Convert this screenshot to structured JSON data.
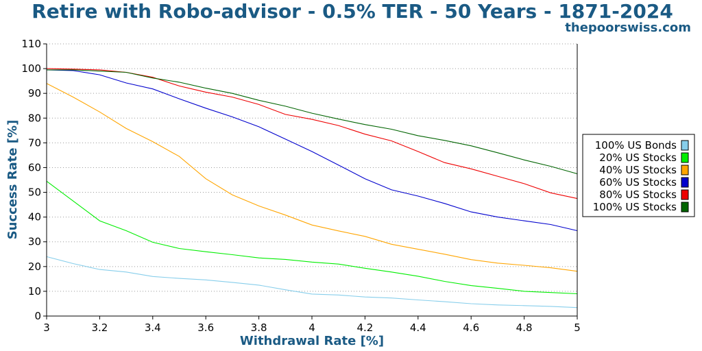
{
  "chart_data": {
    "type": "line",
    "title": "Retire with Robo-advisor - 0.5% TER - 50 Years - 1871-2024",
    "subtitle": "thepoorswiss.com",
    "xlabel": "Withdrawal Rate [%]",
    "ylabel": "Success Rate [%]",
    "xlim": [
      3,
      5
    ],
    "ylim": [
      0,
      110
    ],
    "x_ticks": [
      "3",
      "3.2",
      "3.4",
      "3.6",
      "3.8",
      "4",
      "4.2",
      "4.4",
      "4.6",
      "4.8",
      "5"
    ],
    "y_ticks": [
      "0",
      "10",
      "20",
      "30",
      "40",
      "50",
      "60",
      "70",
      "80",
      "90",
      "100",
      "110"
    ],
    "grid": "horizontal dotted",
    "legend_position": "right",
    "x": [
      3.0,
      3.1,
      3.2,
      3.3,
      3.4,
      3.5,
      3.6,
      3.7,
      3.8,
      3.9,
      4.0,
      4.1,
      4.2,
      4.3,
      4.4,
      4.5,
      4.6,
      4.7,
      4.8,
      4.9,
      5.0
    ],
    "series": [
      {
        "name": "100% US Bonds",
        "color": "#87ceeb",
        "values": [
          24.0,
          21.2,
          18.8,
          17.8,
          16.0,
          15.2,
          14.6,
          13.6,
          12.5,
          10.6,
          8.9,
          8.5,
          7.7,
          7.3,
          6.5,
          5.8,
          5.0,
          4.5,
          4.2,
          3.9,
          3.4
        ]
      },
      {
        "name": "20% US Stocks",
        "color": "#00ee00",
        "values": [
          54.5,
          46.5,
          38.5,
          34.5,
          29.8,
          27.3,
          26.0,
          24.8,
          23.5,
          22.9,
          21.8,
          21.0,
          19.3,
          17.8,
          16.1,
          14.0,
          12.3,
          11.2,
          10.0,
          9.5,
          9.0
        ]
      },
      {
        "name": "40% US Stocks",
        "color": "#ffa500",
        "values": [
          94.0,
          88.5,
          82.5,
          75.8,
          70.5,
          64.5,
          55.5,
          49.0,
          44.5,
          40.8,
          36.8,
          34.4,
          32.2,
          29.0,
          27.0,
          25.0,
          22.8,
          21.4,
          20.5,
          19.5,
          18.1
        ]
      },
      {
        "name": "60% US Stocks",
        "color": "#0000cd",
        "values": [
          99.5,
          99.2,
          97.5,
          94.2,
          91.8,
          87.8,
          84.0,
          80.5,
          76.5,
          71.5,
          66.5,
          61.0,
          55.5,
          51.0,
          48.5,
          45.5,
          42.1,
          40.0,
          38.5,
          37.0,
          34.5
        ]
      },
      {
        "name": "80% US Stocks",
        "color": "#ee0000",
        "values": [
          100,
          99.8,
          99.5,
          98.5,
          96.5,
          93.0,
          90.5,
          88.5,
          85.5,
          81.5,
          79.5,
          77.0,
          73.5,
          70.8,
          66.5,
          62.0,
          59.5,
          56.5,
          53.5,
          49.8,
          47.5
        ]
      },
      {
        "name": "100% US Stocks",
        "color": "#006400",
        "values": [
          99.5,
          99.5,
          99.0,
          98.5,
          96.2,
          94.5,
          92.1,
          90.0,
          87.2,
          84.8,
          82.0,
          79.6,
          77.4,
          75.5,
          72.9,
          71.0,
          68.8,
          66.0,
          63.1,
          60.5,
          57.5
        ]
      }
    ]
  }
}
